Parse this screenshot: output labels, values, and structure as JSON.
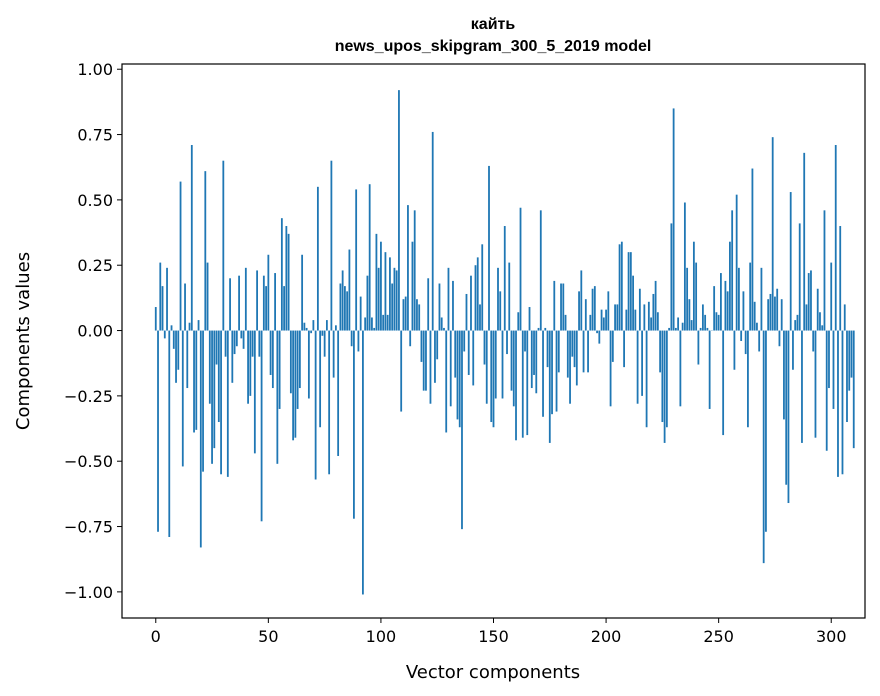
{
  "chart_data": {
    "type": "bar",
    "title_line1": "кайть",
    "title_line2": "news_upos_skipgram_300_5_2019 model",
    "xlabel": "Vector components",
    "ylabel": "Components values",
    "xlim": [
      -15,
      315
    ],
    "ylim": [
      -1.1,
      1.02
    ],
    "xticks": [
      0,
      50,
      100,
      150,
      200,
      250,
      300
    ],
    "xtick_labels": [
      "0",
      "50",
      "100",
      "150",
      "200",
      "250",
      "300"
    ],
    "yticks": [
      1.0,
      0.75,
      0.5,
      0.25,
      0.0,
      -0.25,
      -0.5,
      -0.75,
      -1.0
    ],
    "ytick_labels": [
      "1.00",
      "0.75",
      "0.50",
      "0.25",
      "0.00",
      "−0.25",
      "−0.50",
      "−0.75",
      "−1.00"
    ],
    "bar_color": "#1f77b4",
    "values": [
      0.09,
      -0.77,
      0.26,
      0.17,
      -0.03,
      0.24,
      -0.79,
      0.02,
      -0.07,
      -0.2,
      -0.15,
      0.57,
      -0.52,
      0.18,
      -0.22,
      0.03,
      0.71,
      -0.39,
      -0.38,
      0.04,
      -0.83,
      -0.54,
      0.61,
      0.26,
      -0.28,
      -0.51,
      -0.45,
      -0.13,
      -0.35,
      -0.55,
      0.65,
      -0.1,
      -0.56,
      0.2,
      -0.2,
      -0.09,
      -0.06,
      0.21,
      -0.03,
      -0.07,
      0.24,
      -0.28,
      -0.25,
      -0.1,
      -0.47,
      0.23,
      -0.1,
      -0.73,
      0.21,
      0.17,
      0.29,
      -0.17,
      -0.22,
      0.22,
      -0.51,
      -0.3,
      0.43,
      0.17,
      0.4,
      0.37,
      -0.24,
      -0.42,
      -0.41,
      -0.3,
      -0.22,
      0.29,
      0.03,
      0.01,
      -0.26,
      -0.01,
      0.04,
      -0.57,
      0.55,
      -0.37,
      -0.02,
      -0.1,
      0.04,
      -0.55,
      0.65,
      -0.18,
      0.02,
      -0.48,
      0.18,
      0.23,
      0.17,
      0.15,
      0.31,
      -0.06,
      -0.72,
      0.54,
      -0.08,
      0.13,
      -1.01,
      0.05,
      0.21,
      0.56,
      0.05,
      0.01,
      0.37,
      0.24,
      0.34,
      0.06,
      0.3,
      0.06,
      0.28,
      0.18,
      0.24,
      0.23,
      0.92,
      -0.31,
      0.12,
      0.13,
      0.48,
      -0.06,
      0.34,
      0.46,
      0.12,
      0.1,
      -0.12,
      -0.23,
      -0.23,
      0.2,
      -0.28,
      0.76,
      -0.2,
      -0.11,
      0.18,
      0.05,
      0.01,
      -0.39,
      0.24,
      -0.29,
      0.19,
      -0.18,
      -0.34,
      -0.37,
      -0.76,
      -0.08,
      0.14,
      -0.17,
      0.21,
      -0.21,
      0.25,
      0.28,
      0.1,
      0.33,
      -0.13,
      -0.28,
      0.63,
      -0.35,
      -0.37,
      -0.26,
      0.24,
      0.15,
      -0.26,
      0.4,
      -0.09,
      0.26,
      -0.23,
      -0.29,
      -0.42,
      0.07,
      0.47,
      -0.41,
      -0.08,
      -0.4,
      0.09,
      -0.22,
      -0.17,
      -0.24,
      0.01,
      0.46,
      -0.33,
      0.01,
      -0.14,
      -0.43,
      -0.32,
      0.19,
      -0.31,
      -0.16,
      0.18,
      0.18,
      0.06,
      -0.18,
      -0.28,
      -0.1,
      -0.14,
      -0.21,
      0.15,
      0.23,
      -0.16,
      0.12,
      -0.16,
      0.06,
      0.16,
      0.17,
      -0.01,
      -0.05,
      0.08,
      0.05,
      0.08,
      0.15,
      -0.29,
      -0.12,
      0.1,
      0.1,
      0.33,
      0.34,
      -0.14,
      0.08,
      0.3,
      0.3,
      0.21,
      0.08,
      -0.28,
      0.16,
      -0.25,
      0.1,
      -0.37,
      0.11,
      0.05,
      0.14,
      0.19,
      0.07,
      -0.16,
      -0.35,
      -0.43,
      -0.37,
      0.01,
      0.41,
      0.85,
      0.01,
      0.05,
      -0.29,
      0.03,
      0.49,
      0.24,
      0.12,
      0.04,
      0.34,
      0.26,
      -0.13,
      0.01,
      0.1,
      0.06,
      0.01,
      -0.3,
      0.0,
      0.17,
      0.07,
      0.06,
      0.22,
      -0.4,
      0.19,
      0.15,
      0.34,
      0.46,
      -0.15,
      0.52,
      0.24,
      -0.04,
      0.15,
      -0.09,
      -0.37,
      0.26,
      0.62,
      0.11,
      0.03,
      -0.08,
      0.24,
      -0.89,
      -0.77,
      0.12,
      0.14,
      0.74,
      0.13,
      0.16,
      -0.06,
      0.12,
      -0.34,
      -0.59,
      -0.66,
      0.53,
      -0.15,
      0.04,
      0.06,
      0.41,
      -0.43,
      0.68,
      0.1,
      0.22,
      0.23,
      -0.08,
      -0.41,
      0.16,
      0.07,
      0.02,
      0.46,
      -0.46,
      -0.22,
      0.26,
      -0.3,
      0.71,
      -0.56,
      0.4,
      -0.55,
      0.1,
      -0.35,
      -0.23,
      -0.18,
      -0.45
    ]
  }
}
